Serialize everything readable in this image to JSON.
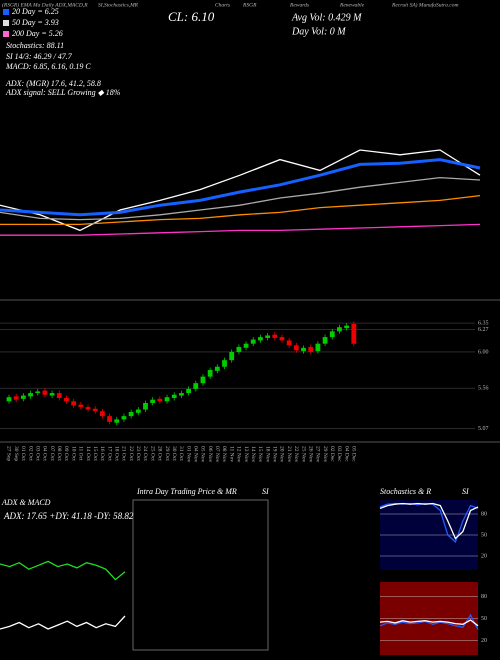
{
  "header": [
    "(RSGR) EMA Ma Daily ADX,MACD,R",
    "SI,Stochastics,MR",
    "Charts",
    "RSGR",
    "Rewards",
    "Renewable",
    "Recruit SA) MunafaSutra.com"
  ],
  "info": {
    "legend": [
      {
        "text": "20 Day = 6.25",
        "color": "#1560ff"
      },
      {
        "text": "50 Day = 3.93",
        "color": "#dddddd"
      },
      {
        "text": "200 Day = 5.26",
        "color": "#ff66cc"
      }
    ],
    "lines": [
      "Stochastics: 88.11",
      "SI 14/3: 46.29 / 47.7",
      "MACD: 6.85, 6.16, 0.19 C",
      "ADX: (MGR) 17.6, 41.2, 58.8",
      "ADX signal: SELL Growing ◆ 18%"
    ],
    "cl": "CL: 6.10",
    "avg_vol": "Avg Vol: 0.429 M",
    "day_vol": "Day Vol: 0 M"
  },
  "panels": {
    "adx": "ADX & MACD",
    "adx_values": "ADX: 17.65 +DY: 41.18 -DY: 58.82",
    "intraday": "Intra Day Trading Price & MR",
    "intraday_si": "SI",
    "stoch": "Stochastics & R",
    "stoch_si": "SI"
  },
  "chart_data": [
    {
      "type": "line",
      "ylim": [
        4.5,
        7.0
      ],
      "series": [
        {
          "color": "#ffffff",
          "values": [
            5.29,
            5.21,
            5.08,
            5.25,
            5.33,
            5.42,
            5.54,
            5.67,
            5.58,
            5.75,
            5.71,
            5.75,
            5.54
          ]
        },
        {
          "color": "#1560ff",
          "values": [
            5.25,
            5.23,
            5.21,
            5.23,
            5.29,
            5.33,
            5.4,
            5.46,
            5.54,
            5.63,
            5.64,
            5.67,
            5.6
          ]
        },
        {
          "color": "#aaaaaa",
          "values": [
            5.23,
            5.18,
            5.17,
            5.18,
            5.21,
            5.25,
            5.29,
            5.35,
            5.39,
            5.44,
            5.48,
            5.52,
            5.5
          ]
        },
        {
          "color": "#ff8c00",
          "values": [
            5.13,
            5.13,
            5.13,
            5.15,
            5.17,
            5.18,
            5.21,
            5.23,
            5.27,
            5.29,
            5.31,
            5.33,
            5.37
          ]
        },
        {
          "color": "#ff33cc",
          "values": [
            5.04,
            5.04,
            5.04,
            5.05,
            5.06,
            5.07,
            5.08,
            5.08,
            5.09,
            5.1,
            5.11,
            5.12,
            5.13
          ]
        }
      ]
    },
    {
      "type": "candlestick",
      "ylim": [
        4.93,
        6.57
      ],
      "yticks": [
        6.35,
        6.27,
        {
          "value": 6,
          "label": "6.00"
        },
        5.56,
        5.07
      ],
      "categories": [
        "27 Sep",
        "30 Sep",
        "01 Oct",
        "02 Oct",
        "03 Oct",
        "04 Oct",
        "07 Oct",
        "08 Oct",
        "09 Oct",
        "10 Oct",
        "11 Oct",
        "14 Oct",
        "15 Oct",
        "16 Oct",
        "17 Oct",
        "18 Oct",
        "21 Oct",
        "22 Oct",
        "23 Oct",
        "24 Oct",
        "25 Oct",
        "28 Oct",
        "29 Oct",
        "30 Oct",
        "31 Oct",
        "01 Nov",
        "04 Nov",
        "05 Nov",
        "06 Nov",
        "07 Nov",
        "08 Nov",
        "11 Nov",
        "12 Nov",
        "13 Nov",
        "14 Nov",
        "15 Nov",
        "18 Nov",
        "19 Nov",
        "20 Nov",
        "21 Nov",
        "22 Nov",
        "25 Nov",
        "26 Nov",
        "27 Nov",
        "29 Nov",
        "02 Dec",
        "03 Dec",
        "04 Dec",
        "05 Dec"
      ],
      "open": [
        5.4,
        5.46,
        5.43,
        5.46,
        5.5,
        5.53,
        5.47,
        5.5,
        5.44,
        5.4,
        5.36,
        5.33,
        5.31,
        5.28,
        5.22,
        5.14,
        5.18,
        5.22,
        5.26,
        5.3,
        5.38,
        5.43,
        5.4,
        5.44,
        5.47,
        5.5,
        5.55,
        5.62,
        5.7,
        5.77,
        5.82,
        5.9,
        6.0,
        6.05,
        6.1,
        6.14,
        6.17,
        6.21,
        6.18,
        6.14,
        6.08,
        6.01,
        6.06,
        6.01,
        6.1,
        6.18,
        6.25,
        6.29,
        6.34
      ],
      "high": [
        5.48,
        5.49,
        5.5,
        5.53,
        5.55,
        5.56,
        5.53,
        5.53,
        5.47,
        5.43,
        5.39,
        5.36,
        5.34,
        5.31,
        5.25,
        5.21,
        5.25,
        5.3,
        5.33,
        5.41,
        5.45,
        5.46,
        5.48,
        5.51,
        5.53,
        5.58,
        5.65,
        5.73,
        5.81,
        5.85,
        5.93,
        6.03,
        6.09,
        6.13,
        6.18,
        6.21,
        6.23,
        6.24,
        6.21,
        6.17,
        6.11,
        6.08,
        6.09,
        6.13,
        6.21,
        6.28,
        6.33,
        6.35,
        6.37
      ],
      "low": [
        5.37,
        5.39,
        5.4,
        5.43,
        5.47,
        5.45,
        5.44,
        5.41,
        5.37,
        5.32,
        5.3,
        5.27,
        5.25,
        5.19,
        5.12,
        5.11,
        5.15,
        5.19,
        5.23,
        5.27,
        5.35,
        5.37,
        5.37,
        5.41,
        5.44,
        5.47,
        5.52,
        5.59,
        5.67,
        5.74,
        5.79,
        5.87,
        5.97,
        6.02,
        6.07,
        6.11,
        6.14,
        6.14,
        6.11,
        6.05,
        5.99,
        5.98,
        5.97,
        5.98,
        6.07,
        6.15,
        6.22,
        6.26,
        6.07
      ],
      "close": [
        5.45,
        5.42,
        5.47,
        5.5,
        5.52,
        5.48,
        5.5,
        5.44,
        5.4,
        5.35,
        5.33,
        5.3,
        5.28,
        5.22,
        5.15,
        5.18,
        5.22,
        5.27,
        5.3,
        5.38,
        5.42,
        5.4,
        5.45,
        5.48,
        5.5,
        5.55,
        5.62,
        5.7,
        5.78,
        5.82,
        5.9,
        6.0,
        6.06,
        6.1,
        6.15,
        6.18,
        6.2,
        6.17,
        6.14,
        6.08,
        6.02,
        6.05,
        6.0,
        6.1,
        6.18,
        6.25,
        6.3,
        6.32,
        6.1
      ],
      "up_color": "#00cc00",
      "down_color": "#ee0000"
    },
    {
      "type": "line",
      "ylim": [
        0,
        100
      ],
      "series": [
        {
          "color": "#22dd22",
          "values": [
            70,
            68,
            71,
            66,
            69,
            72,
            68,
            70,
            67,
            71,
            69,
            66,
            58,
            64
          ]
        },
        {
          "color": "#ffffff",
          "values": [
            20,
            22,
            25,
            21,
            24,
            20,
            23,
            26,
            22,
            25,
            21,
            24,
            22,
            30
          ]
        }
      ]
    },
    {
      "type": "line",
      "ylim": [
        0,
        100
      ],
      "background": "#00003a",
      "yticks": [
        80,
        50,
        20
      ],
      "series": [
        {
          "color": "#1f5bff",
          "values": [
            90,
            94,
            95,
            94,
            95,
            93,
            95,
            94,
            85,
            50,
            40,
            70,
            92,
            88
          ]
        },
        {
          "color": "#ffffff",
          "values": [
            88,
            92,
            94,
            95,
            94,
            95,
            94,
            95,
            92,
            70,
            45,
            55,
            85,
            90
          ]
        }
      ]
    },
    {
      "type": "line",
      "ylim": [
        0,
        100
      ],
      "background": "#7a0000",
      "yticks": [
        80,
        50,
        20
      ],
      "series": [
        {
          "color": "#1f5bff",
          "values": [
            40,
            44,
            42,
            45,
            43,
            44,
            46,
            42,
            45,
            43,
            40,
            38,
            55,
            35
          ]
        },
        {
          "color": "#ffffff",
          "values": [
            45,
            46,
            44,
            47,
            45,
            46,
            47,
            45,
            46,
            45,
            43,
            42,
            48,
            40
          ]
        }
      ]
    }
  ]
}
